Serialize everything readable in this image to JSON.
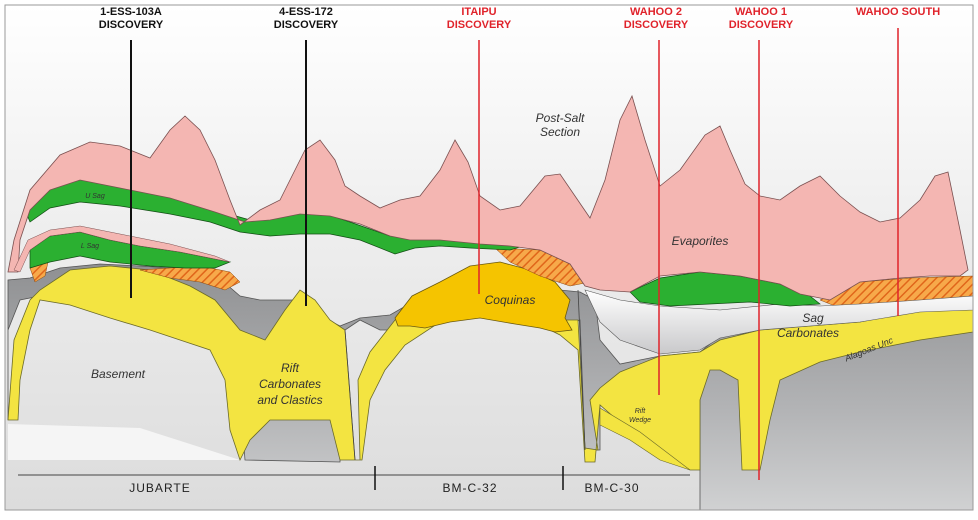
{
  "wells": [
    {
      "line1": "1-ESS-103A",
      "line2": "DISCOVERY",
      "color": "#111111"
    },
    {
      "line1": "4-ESS-172",
      "line2": "DISCOVERY",
      "color": "#111111"
    },
    {
      "line1": "ITAIPU",
      "line2": "DISCOVERY",
      "color": "#e0232b"
    },
    {
      "line1": "WAHOO 2",
      "line2": "DISCOVERY",
      "color": "#e0232b"
    },
    {
      "line1": "WAHOO 1",
      "line2": "DISCOVERY",
      "color": "#e0232b"
    },
    {
      "line1": "WAHOO SOUTH",
      "line2": "",
      "color": "#e0232b"
    }
  ],
  "units": {
    "post_salt_1": "Post-Salt",
    "post_salt_2": "Section",
    "evaporites": "Evaporites",
    "u_sag": "U Sag",
    "l_sag": "L Sag",
    "coquinas": "Coquinas",
    "sag_carb_1": "Sag",
    "sag_carb_2": "Carbonates",
    "alagoas_unc": "Alagoas Unc",
    "basement": "Basement",
    "rift_1": "Rift",
    "rift_2": "Carbonates",
    "rift_3": "and Clastics",
    "rift_wedge_1": "Rift",
    "rift_wedge_2": "Wedge"
  },
  "blocks": [
    "JUBARTE",
    "BM-C-32",
    "BM-C-30"
  ],
  "colors": {
    "evaporites": "#f4b6b2",
    "sag": "#2bb031",
    "rift": "#f3e441",
    "coquinas": "#f5c400",
    "hatch": "#ee7f22",
    "basement": "#a7a8aa",
    "post_salt": "#e7e7e7"
  }
}
